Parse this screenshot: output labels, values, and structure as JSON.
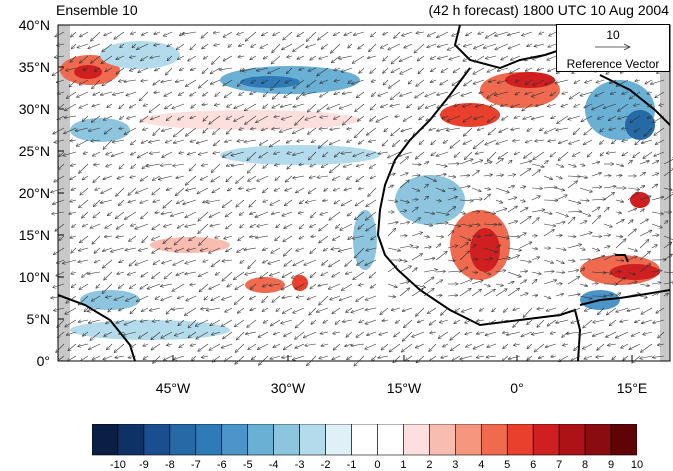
{
  "title_left": "Ensemble 10",
  "title_right": "(42 h forecast) 1800 UTC 10 Aug 2004",
  "reference": {
    "magnitude": "10",
    "label": "Reference Vector"
  },
  "lat_labels": [
    "40°N",
    "35°N",
    "30°N",
    "25°N",
    "20°N",
    "15°N",
    "10°N",
    "5°N",
    "0°"
  ],
  "lon_labels": [
    "45°W",
    "30°W",
    "15°W",
    "0°",
    "15°E"
  ],
  "colorbar": {
    "labels": [
      "-10",
      "-9",
      "-8",
      "-7",
      "-6",
      "-5",
      "-4",
      "-3",
      "-2",
      "-1",
      "0",
      "1",
      "2",
      "3",
      "4",
      "5",
      "6",
      "7",
      "8",
      "9",
      "10"
    ],
    "colors": [
      "#0b1f45",
      "#0f3266",
      "#1a4e8e",
      "#2569a6",
      "#2f7bb8",
      "#4c95c8",
      "#6aafd4",
      "#8dc5df",
      "#b3dbeb",
      "#dff0f7",
      "#ffffff",
      "#ffffff",
      "#fde0dd",
      "#f9bcb0",
      "#f5977f",
      "#ef6a4f",
      "#e8402d",
      "#cf1f20",
      "#ad1316",
      "#8a0b10",
      "#5f0306"
    ]
  },
  "colors": {
    "land": "#c8c8c8",
    "coast": "#000000",
    "arrow": "#333333"
  }
}
